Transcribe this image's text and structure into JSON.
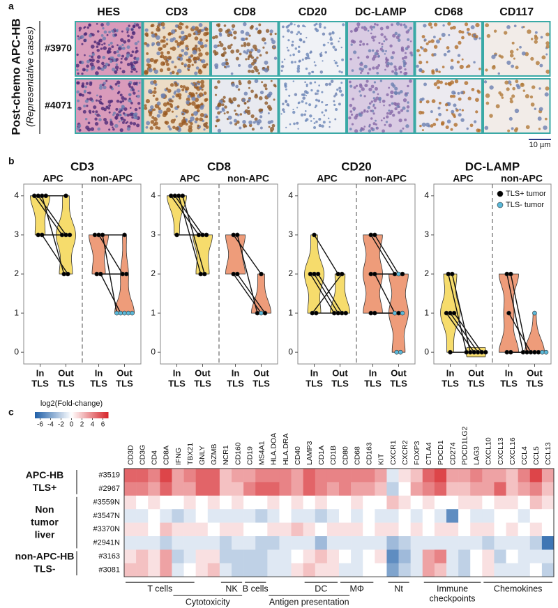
{
  "panel_labels": {
    "a": "a",
    "b": "b",
    "c": "c"
  },
  "panel_a": {
    "row_title": "Post-chemo APC-HB",
    "row_subtitle": "(Representative cases)",
    "columns": [
      "HES",
      "CD3",
      "CD8",
      "CD20",
      "DC-LAMP",
      "CD68",
      "CD117"
    ],
    "rows": [
      "#3970",
      "#4071"
    ],
    "scale_bar": "10 µm"
  },
  "chart_data": [
    {
      "type": "violin",
      "title": "CD3",
      "ylim": [
        -0.3,
        4.3
      ],
      "yticks": [
        0,
        1,
        2,
        3,
        4
      ],
      "x_labels": [
        [
          "In",
          "TLS"
        ],
        [
          "Out",
          "TLS"
        ]
      ],
      "groups": [
        {
          "name": "APC",
          "color": "#f6dc6c",
          "in": [
            4,
            4,
            4,
            4,
            3,
            3
          ],
          "out": [
            3,
            3,
            2,
            4,
            3,
            2
          ],
          "out_colors": [
            "#000000",
            "#000000",
            "#000000",
            "#000000",
            "#000000",
            "#000000"
          ]
        },
        {
          "name": "non-APC",
          "color": "#ee9c7a",
          "in": [
            3,
            3,
            3,
            2,
            2,
            null,
            null,
            null
          ],
          "out": [
            3,
            2,
            1,
            2,
            1,
            1,
            1,
            1
          ],
          "out_colors": [
            "#000000",
            "#000000",
            "#5bb8d8",
            "#000000",
            "#5bb8d8",
            "#5bb8d8",
            "#5bb8d8",
            "#5bb8d8"
          ]
        }
      ]
    },
    {
      "type": "violin",
      "title": "CD8",
      "ylim": [
        -0.3,
        4.3
      ],
      "yticks": [
        0,
        1,
        2,
        3,
        4
      ],
      "x_labels": [
        [
          "In",
          "TLS"
        ],
        [
          "Out",
          "TLS"
        ]
      ],
      "groups": [
        {
          "name": "APC",
          "color": "#f6dc6c",
          "in": [
            4,
            4,
            4,
            4,
            3
          ],
          "out": [
            3,
            3,
            2,
            2,
            3
          ],
          "out_colors": [
            "#000000",
            "#000000",
            "#000000",
            "#000000",
            "#000000"
          ]
        },
        {
          "name": "non-APC",
          "color": "#ee9c7a",
          "in": [
            3,
            3,
            2,
            2
          ],
          "out": [
            2,
            1,
            1,
            1
          ],
          "out_colors": [
            "#000000",
            "#000000",
            "#5bb8d8",
            "#000000"
          ]
        }
      ]
    },
    {
      "type": "violin",
      "title": "CD20",
      "ylim": [
        -0.3,
        4.3
      ],
      "yticks": [
        0,
        1,
        2,
        3,
        4
      ],
      "x_labels": [
        [
          "In",
          "TLS"
        ],
        [
          "Out",
          "TLS"
        ]
      ],
      "groups": [
        {
          "name": "APC",
          "color": "#f6dc6c",
          "in": [
            3,
            2,
            2,
            2,
            1,
            1
          ],
          "out": [
            2,
            1,
            1,
            1,
            2,
            1
          ],
          "out_colors": [
            "#000000",
            "#000000",
            "#000000",
            "#000000",
            "#000000",
            "#000000"
          ]
        },
        {
          "name": "non-APC",
          "color": "#ee9c7a",
          "in": [
            3,
            3,
            2,
            2,
            1,
            1,
            null,
            null
          ],
          "out": [
            2,
            2,
            2,
            1,
            1,
            1,
            0,
            0
          ],
          "out_colors": [
            "#000000",
            "#5bb8d8",
            "#000000",
            "#5bb8d8",
            "#000000",
            "#5bb8d8",
            "#5bb8d8",
            "#5bb8d8"
          ]
        }
      ]
    },
    {
      "type": "violin",
      "title": "DC-LAMP",
      "ylim": [
        -0.3,
        4.3
      ],
      "yticks": [
        0,
        1,
        2,
        3,
        4
      ],
      "x_labels": [
        [
          "In",
          "TLS"
        ],
        [
          "Out",
          "TLS"
        ]
      ],
      "legend": [
        {
          "name": "TLS+ tumor",
          "color": "#000000"
        },
        {
          "name": "TLS- tumor",
          "color": "#5bb8d8"
        }
      ],
      "groups": [
        {
          "name": "APC",
          "color": "#f6dc6c",
          "in": [
            2,
            2,
            1,
            1,
            1,
            0
          ],
          "out": [
            0,
            0,
            0,
            0,
            0,
            0
          ],
          "out_colors": [
            "#000000",
            "#000000",
            "#000000",
            "#000000",
            "#000000",
            "#000000"
          ]
        },
        {
          "name": "non-APC",
          "color": "#ee9c7a",
          "in": [
            2,
            2,
            1,
            0,
            0,
            null,
            null,
            null
          ],
          "out": [
            0,
            0,
            0,
            0,
            0,
            1,
            0,
            0
          ],
          "out_colors": [
            "#000000",
            "#000000",
            "#000000",
            "#000000",
            "#000000",
            "#5bb8d8",
            "#5bb8d8",
            "#5bb8d8"
          ]
        }
      ]
    },
    {
      "type": "heatmap",
      "colorbar_label": "log2(Fold-change)",
      "clim": [
        -7,
        7
      ],
      "cticks": [
        -6,
        -4,
        -2,
        0,
        2,
        4,
        6
      ],
      "colormap": [
        "#1f5fa8",
        "#ffffff",
        "#d7262b"
      ],
      "columns": [
        "CD3D",
        "CD3G",
        "CD4",
        "CD8A",
        "IFNG",
        "TBX21",
        "GNLY",
        "GZMB",
        "NCR1",
        "CD160",
        "CD19",
        "MS4A1",
        "HLA.DOA",
        "HLA.DRA",
        "CD40",
        "LAMP3",
        "CD1A",
        "CD1B",
        "CD80",
        "CD68",
        "CD163",
        "KIT",
        "CXCR1",
        "CXCR2",
        "FOXP3",
        "CTLA4",
        "PDCD1",
        "CD274",
        "PDCD1LG2",
        "LAG3",
        "CXCL10",
        "CXCL13",
        "CXCL16",
        "CCL4",
        "CCL5",
        "CCL13"
      ],
      "rows": [
        "#3519",
        "#2967",
        "#3559N",
        "#3547N",
        "#3370N",
        "#2941N",
        "#3163",
        "#3081"
      ],
      "row_groups": [
        {
          "label": [
            "APC-HB",
            "TLS+"
          ],
          "from": "#3519",
          "to": "#2967"
        },
        {
          "label": [
            "Non",
            "tumor",
            "liver"
          ],
          "from": "#3559N",
          "to": "#2941N"
        },
        {
          "label": [
            "non-APC-HB",
            "TLS-"
          ],
          "from": "#3163",
          "to": "#3081"
        }
      ],
      "values": [
        [
          5,
          5,
          4,
          6,
          3,
          4,
          5,
          5,
          2,
          3,
          3,
          4,
          4,
          4,
          3,
          5,
          4,
          4,
          4,
          4,
          4,
          3,
          -1,
          1,
          2,
          5,
          6,
          3,
          3,
          4,
          3,
          3,
          2,
          4,
          6,
          3
        ],
        [
          4,
          4,
          3,
          5,
          3,
          3,
          5,
          5,
          2,
          2,
          4,
          5,
          5,
          4,
          3,
          5,
          4,
          3,
          4,
          3,
          3,
          2,
          -2,
          0,
          3,
          4,
          5,
          2,
          2,
          3,
          3,
          5,
          2,
          3,
          4,
          2
        ],
        [
          1,
          0,
          1,
          0,
          0,
          1,
          0,
          1,
          0,
          1,
          0,
          0,
          1,
          0,
          1,
          0,
          1,
          0,
          0,
          1,
          0,
          0,
          2,
          1,
          0,
          1,
          0,
          0,
          1,
          1,
          0,
          1,
          1,
          0,
          2,
          1
        ],
        [
          -1,
          -1,
          0,
          -1,
          -2,
          -1,
          0,
          -1,
          -1,
          -1,
          -1,
          -2,
          -1,
          0,
          -1,
          -1,
          -2,
          -1,
          0,
          -1,
          0,
          -1,
          -1,
          0,
          -1,
          0,
          -1,
          -5,
          0,
          -1,
          -1,
          0,
          0,
          -1,
          0,
          0
        ],
        [
          1,
          1,
          0,
          2,
          1,
          1,
          1,
          0,
          1,
          1,
          0,
          0,
          1,
          1,
          2,
          1,
          0,
          1,
          1,
          1,
          0,
          1,
          1,
          0,
          1,
          0,
          1,
          1,
          0,
          1,
          1,
          0,
          1,
          0,
          1,
          0
        ],
        [
          -1,
          -1,
          -1,
          -2,
          -1,
          -1,
          -1,
          -1,
          -2,
          -1,
          -1,
          -2,
          -2,
          -1,
          -1,
          -1,
          -3,
          -1,
          -1,
          -1,
          -1,
          -1,
          -3,
          -2,
          -1,
          -1,
          -1,
          -1,
          -1,
          -1,
          -2,
          -1,
          -1,
          -1,
          -2,
          -6
        ],
        [
          1,
          2,
          1,
          3,
          -2,
          -1,
          1,
          1,
          -2,
          -2,
          -2,
          -2,
          -1,
          -1,
          0,
          1,
          2,
          1,
          0,
          -1,
          0,
          1,
          -5,
          -3,
          -1,
          3,
          4,
          -1,
          -2,
          0,
          1,
          -2,
          0,
          -1,
          -1,
          -1
        ],
        [
          2,
          2,
          1,
          3,
          -1,
          0,
          1,
          2,
          -1,
          -2,
          -2,
          -2,
          -1,
          -1,
          1,
          2,
          1,
          1,
          -1,
          -1,
          0,
          0,
          -4,
          -2,
          -1,
          3,
          2,
          -1,
          -2,
          0,
          1,
          -1,
          -1,
          -1,
          0,
          -2
        ]
      ],
      "brackets_upper": [
        {
          "label": [
            "T cells"
          ],
          "from": "CD3D",
          "to": "TBX21"
        },
        {
          "label": [
            "NK"
          ],
          "from": "NCR1",
          "to": "CD160"
        },
        {
          "label": [
            "B cells"
          ],
          "from": "CD19",
          "to": "MS4A1"
        },
        {
          "label": [
            "DC"
          ],
          "from": "LAMP3",
          "to": "CD1B"
        },
        {
          "label": [
            "MΦ"
          ],
          "from": "CD80",
          "to": "CD163"
        },
        {
          "label": [
            "Nt"
          ],
          "from": "CXCR1",
          "to": "CXCR2"
        },
        {
          "label": [
            "Immune",
            "checkpoints"
          ],
          "from": "CTLA4",
          "to": "LAG3"
        },
        {
          "label": [
            "Chemokines"
          ],
          "from": "CXCL10",
          "to": "CCL13"
        }
      ],
      "brackets_lower": [
        {
          "label": [
            "Cytotoxicity"
          ],
          "from": "IFNG",
          "to": "CD160"
        },
        {
          "label": [
            "Antigen presentation"
          ],
          "from": "HLA.DOA",
          "to": "CD80"
        }
      ]
    }
  ]
}
